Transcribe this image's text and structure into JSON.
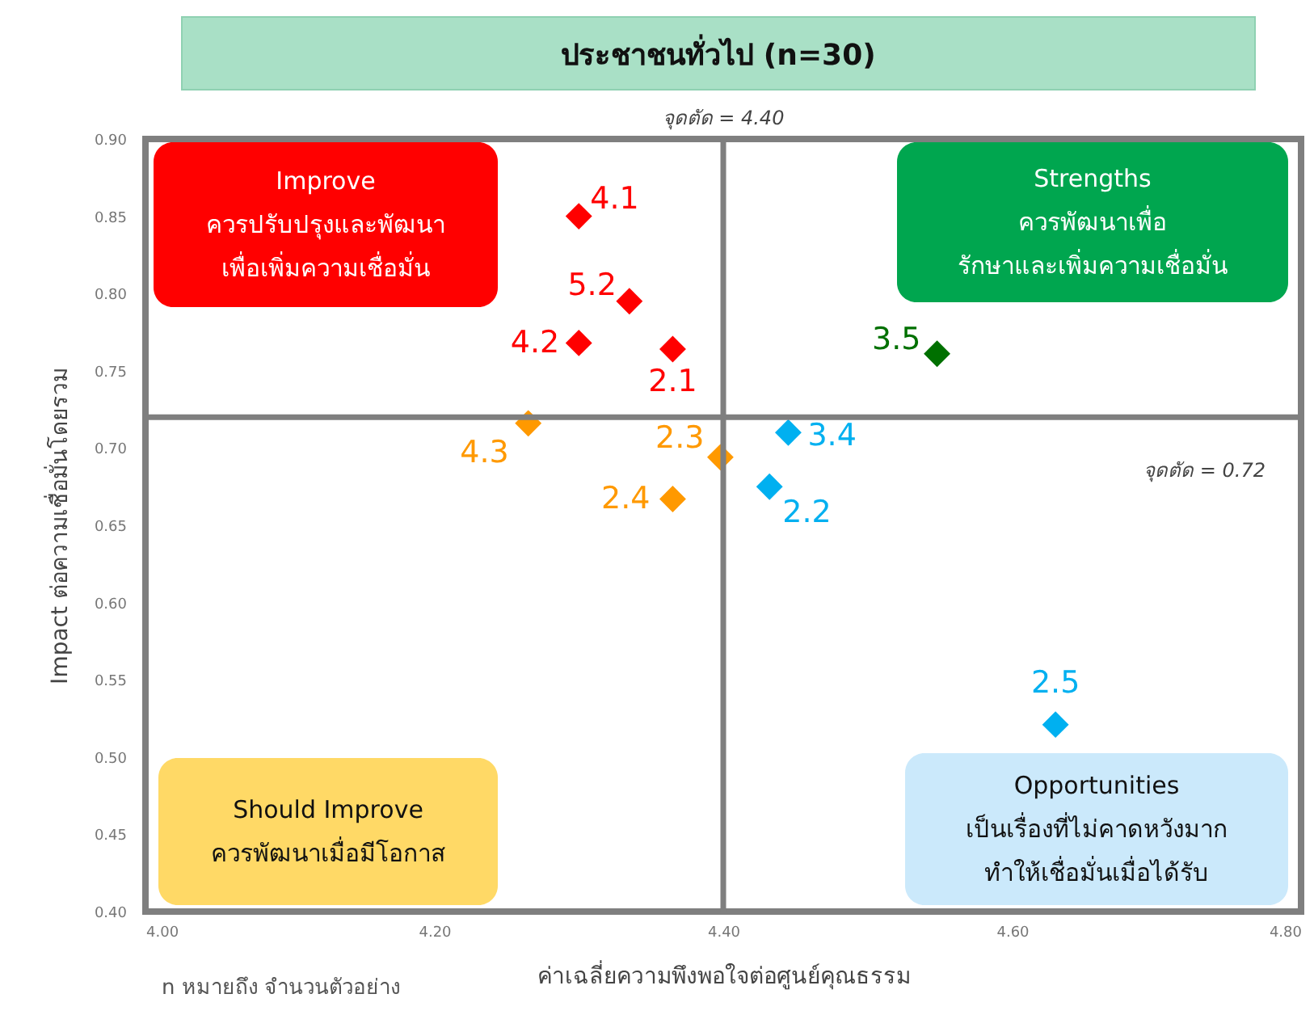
{
  "chart_data": {
    "type": "scatter",
    "title": "ประชาชนทั่วไป (n=30)",
    "xlabel": "ค่าเฉลี่ยความพึงพอใจต่อศูนย์คุณธรรม",
    "ylabel": "Impact ต่อความเชื่อมั่นโดยรวม",
    "xlim": [
      4.0,
      4.8
    ],
    "xticks": [
      {
        "value": 4.0,
        "label": "4.00"
      },
      {
        "value": 4.2,
        "label": "4.20"
      },
      {
        "value": 4.4,
        "label": "4.40"
      },
      {
        "value": 4.6,
        "label": "4.60"
      },
      {
        "value": 4.8,
        "label": "4.80"
      }
    ],
    "ylim": [
      0.4,
      0.9
    ],
    "yticks": [
      {
        "value": 0.4,
        "label": "0.40"
      },
      {
        "value": 0.45,
        "label": "0.45"
      },
      {
        "value": 0.5,
        "label": "0.50"
      },
      {
        "value": 0.55,
        "label": "0.55"
      },
      {
        "value": 0.6,
        "label": "0.60"
      },
      {
        "value": 0.65,
        "label": "0.65"
      },
      {
        "value": 0.7,
        "label": "0.70"
      },
      {
        "value": 0.75,
        "label": "0.75"
      },
      {
        "value": 0.8,
        "label": "0.80"
      },
      {
        "value": 0.85,
        "label": "0.85"
      },
      {
        "value": 0.9,
        "label": "0.90"
      }
    ],
    "series": [
      {
        "color": "#ff0000",
        "x": [
          4.3,
          4.335,
          4.3,
          4.365
        ],
        "values": [
          0.85,
          0.795,
          0.768,
          0.764
        ]
      },
      {
        "color": "#ff9900",
        "x": [
          4.265,
          4.398,
          4.365
        ],
        "values": [
          0.716,
          0.694,
          0.667
        ]
      },
      {
        "color": "#00b0f0",
        "x": [
          4.445,
          4.432,
          4.63
        ],
        "values": [
          0.71,
          0.675,
          0.521
        ]
      },
      {
        "color": "#007000",
        "x": [
          4.548
        ],
        "values": [
          0.761
        ]
      }
    ],
    "marker": "diamond",
    "grid": false,
    "ref_lines": [
      {
        "axis": "x",
        "value": 4.4,
        "label": "จุดตัด = 4.40",
        "color": "#7f7f7f"
      },
      {
        "axis": "y",
        "value": 0.72,
        "label": "จุดตัด = 0.72",
        "color": "#7f7f7f"
      }
    ],
    "annotations": [
      {
        "text": "4.1",
        "x": 4.3,
        "y": 0.85
      },
      {
        "text": "5.2",
        "x": 4.335,
        "y": 0.795
      },
      {
        "text": "4.2",
        "x": 4.3,
        "y": 0.768
      },
      {
        "text": "2.1",
        "x": 4.365,
        "y": 0.764
      },
      {
        "text": "4.3",
        "x": 4.265,
        "y": 0.716
      },
      {
        "text": "2.3",
        "x": 4.398,
        "y": 0.694
      },
      {
        "text": "2.4",
        "x": 4.365,
        "y": 0.667
      },
      {
        "text": "3.4",
        "x": 4.445,
        "y": 0.71
      },
      {
        "text": "2.2",
        "x": 4.432,
        "y": 0.675
      },
      {
        "text": "3.5",
        "x": 4.548,
        "y": 0.761
      },
      {
        "text": "2.5",
        "x": 4.63,
        "y": 0.521
      },
      "Improve\nควรปรับปรุงและพัฒนา\nเพื่อเพิ่มความเชื่อมั่น",
      "Strengths\nควรพัฒนาเพื่อ\nรักษาและเพิ่มความเชื่อมั่น",
      "Should Improve\nควรพัฒนาเมื่อมีโอกาส",
      "Opportunities\nเป็นเรื่องที่ไม่คาดหวังมาก\nทำให้เชื่อมั่นเมื่อได้รับ",
      "n หมายถึง จำนวนตัวอย่าง"
    ]
  }
}
